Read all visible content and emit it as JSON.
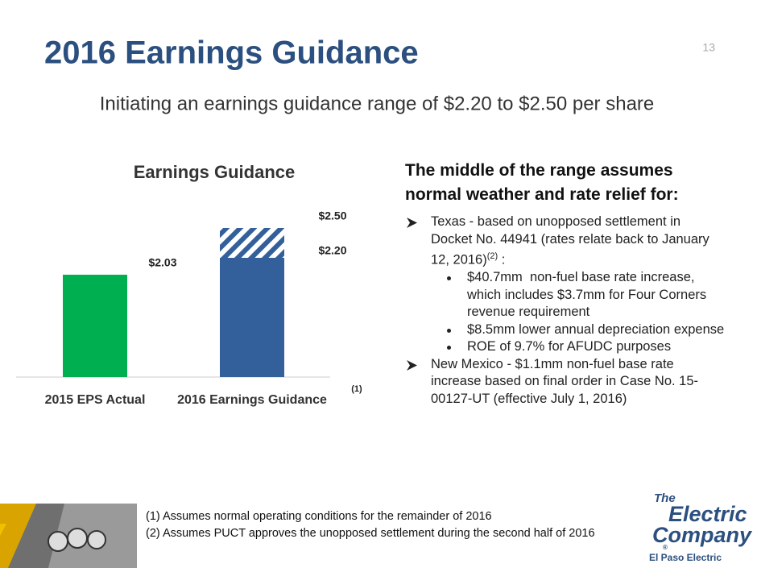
{
  "page_number": "13",
  "header": {
    "title": "2016 Earnings Guidance",
    "subtitle": "Initiating an earnings guidance range of $2.20 to $2.50 per share"
  },
  "chart_data": {
    "type": "bar",
    "title": "Earnings Guidance",
    "categories": [
      "2015 EPS Actual",
      "2016 Earnings Guidance"
    ],
    "values": [
      2.03,
      2.2
    ],
    "value_labels": [
      "$2.03",
      "$2.20"
    ],
    "colors": [
      "#00b050",
      "#33609a"
    ],
    "range_high": [
      null,
      2.5
    ],
    "range_high_labels": [
      null,
      "$2.50"
    ],
    "range_pattern": "hatch",
    "ylim": [
      1,
      2.8
    ],
    "note": "(1)"
  },
  "assumptions": {
    "heading": "The middle of the range assumes normal weather and rate relief for:",
    "items": [
      {
        "text": "Texas - based on unopposed settlement in Docket No. 44941 (rates relate back to January 12, 2016)",
        "sup": "(2)",
        "tail": " :",
        "subitems": [
          "$40.7mm  non-fuel base rate increase, which includes $3.7mm for Four Corners revenue requirement",
          "$8.5mm lower annual depreciation expense",
          "ROE of 9.7% for AFUDC purposes"
        ]
      },
      {
        "text": "New Mexico - $1.1mm non-fuel base rate increase based on final order in Case No. 15-00127-UT (effective July 1, 2016)"
      }
    ]
  },
  "footnotes": [
    "(1) Assumes normal operating conditions for the remainder of 2016",
    "(2) Assumes PUCT approves the unopposed settlement during the second half of 2016"
  ],
  "logo": {
    "lines": [
      "The",
      "Electric",
      "Company"
    ],
    "mark": "®",
    "name": "El Paso Electric"
  }
}
